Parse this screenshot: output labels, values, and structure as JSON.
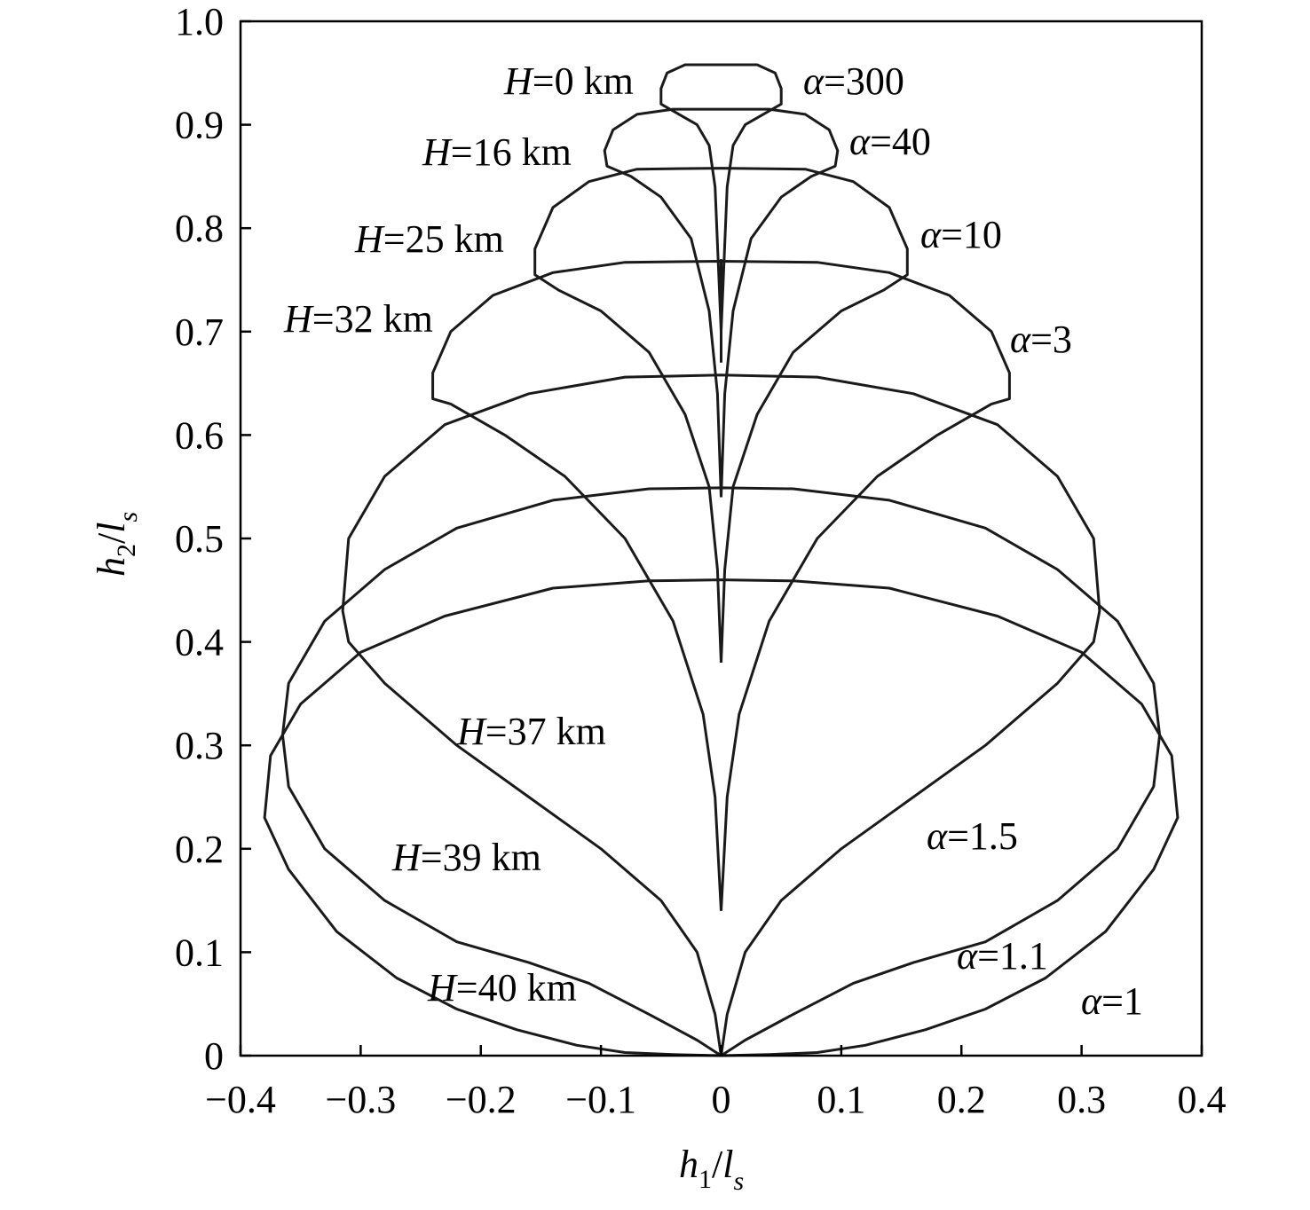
{
  "chart_data": {
    "type": "line",
    "xlabel": {
      "main": "h",
      "sub1": "1",
      "slash": "/",
      "main2": "l",
      "sub2": "s"
    },
    "ylabel": {
      "main": "h",
      "sub1": "2",
      "slash": "/",
      "main2": "l",
      "sub2": "s"
    },
    "xlim": [
      -0.4,
      0.4
    ],
    "ylim": [
      0,
      1.0
    ],
    "x_ticks": [
      {
        "value": -0.4,
        "label": "−0.4"
      },
      {
        "value": -0.3,
        "label": "−0.3"
      },
      {
        "value": -0.2,
        "label": "−0.2"
      },
      {
        "value": -0.1,
        "label": "−0.1"
      },
      {
        "value": 0,
        "label": "0"
      },
      {
        "value": 0.1,
        "label": "0.1"
      },
      {
        "value": 0.2,
        "label": "0.2"
      },
      {
        "value": 0.3,
        "label": "0.3"
      },
      {
        "value": 0.4,
        "label": "0.4"
      }
    ],
    "y_ticks": [
      {
        "value": 0,
        "label": "0"
      },
      {
        "value": 0.1,
        "label": "0.1"
      },
      {
        "value": 0.2,
        "label": "0.2"
      },
      {
        "value": 0.3,
        "label": "0.3"
      },
      {
        "value": 0.4,
        "label": "0.4"
      },
      {
        "value": 0.5,
        "label": "0.5"
      },
      {
        "value": 0.6,
        "label": "0.6"
      },
      {
        "value": 0.7,
        "label": "0.7"
      },
      {
        "value": 0.8,
        "label": "0.8"
      },
      {
        "value": 0.9,
        "label": "0.9"
      },
      {
        "value": 1.0,
        "label": "1.0"
      }
    ],
    "alpha_curves": [
      {
        "alpha": "300",
        "points": [
          [
            0,
            0.7
          ],
          [
            0.005,
            0.84
          ],
          [
            0.01,
            0.88
          ],
          [
            0.02,
            0.9
          ],
          [
            0.035,
            0.91
          ],
          [
            0.05,
            0.92
          ],
          [
            0.05,
            0.935
          ],
          [
            0.045,
            0.95
          ],
          [
            0.03,
            0.958
          ],
          [
            0,
            0.958
          ]
        ]
      },
      {
        "alpha": "40",
        "points": [
          [
            0,
            0.54
          ],
          [
            0.003,
            0.64
          ],
          [
            0.01,
            0.72
          ],
          [
            0.025,
            0.79
          ],
          [
            0.05,
            0.83
          ],
          [
            0.075,
            0.85
          ],
          [
            0.095,
            0.86
          ],
          [
            0.097,
            0.875
          ],
          [
            0.09,
            0.895
          ],
          [
            0.07,
            0.91
          ],
          [
            0.04,
            0.915
          ],
          [
            0,
            0.915
          ]
        ]
      },
      {
        "alpha": "10",
        "points": [
          [
            0,
            0.38
          ],
          [
            0.003,
            0.47
          ],
          [
            0.01,
            0.55
          ],
          [
            0.03,
            0.62
          ],
          [
            0.06,
            0.68
          ],
          [
            0.1,
            0.72
          ],
          [
            0.135,
            0.74
          ],
          [
            0.155,
            0.755
          ],
          [
            0.155,
            0.78
          ],
          [
            0.14,
            0.82
          ],
          [
            0.11,
            0.845
          ],
          [
            0.07,
            0.857
          ],
          [
            0,
            0.858
          ]
        ]
      },
      {
        "alpha": "3",
        "points": [
          [
            0,
            0.14
          ],
          [
            0.005,
            0.25
          ],
          [
            0.015,
            0.33
          ],
          [
            0.04,
            0.42
          ],
          [
            0.08,
            0.5
          ],
          [
            0.13,
            0.56
          ],
          [
            0.18,
            0.6
          ],
          [
            0.225,
            0.63
          ],
          [
            0.24,
            0.635
          ],
          [
            0.24,
            0.66
          ],
          [
            0.225,
            0.7
          ],
          [
            0.19,
            0.735
          ],
          [
            0.14,
            0.757
          ],
          [
            0.08,
            0.767
          ],
          [
            0,
            0.768
          ]
        ]
      },
      {
        "alpha": "1.5",
        "points": [
          [
            0,
            0
          ],
          [
            0.005,
            0.04
          ],
          [
            0.02,
            0.1
          ],
          [
            0.05,
            0.15
          ],
          [
            0.1,
            0.2
          ],
          [
            0.16,
            0.25
          ],
          [
            0.22,
            0.3
          ],
          [
            0.28,
            0.36
          ],
          [
            0.31,
            0.4
          ],
          [
            0.315,
            0.43
          ],
          [
            0.31,
            0.5
          ],
          [
            0.28,
            0.56
          ],
          [
            0.23,
            0.61
          ],
          [
            0.16,
            0.64
          ],
          [
            0.08,
            0.656
          ],
          [
            0,
            0.658
          ]
        ]
      },
      {
        "alpha": "1.1",
        "points": [
          [
            0,
            0
          ],
          [
            0.02,
            0.015
          ],
          [
            0.06,
            0.04
          ],
          [
            0.11,
            0.07
          ],
          [
            0.16,
            0.09
          ],
          [
            0.22,
            0.11
          ],
          [
            0.28,
            0.15
          ],
          [
            0.33,
            0.2
          ],
          [
            0.36,
            0.26
          ],
          [
            0.365,
            0.31
          ],
          [
            0.36,
            0.36
          ],
          [
            0.33,
            0.42
          ],
          [
            0.28,
            0.47
          ],
          [
            0.22,
            0.51
          ],
          [
            0.14,
            0.537
          ],
          [
            0.06,
            0.548
          ],
          [
            0,
            0.549
          ]
        ]
      },
      {
        "alpha": "1",
        "points": [
          [
            0,
            0
          ],
          [
            0.04,
            0.001
          ],
          [
            0.08,
            0.003
          ],
          [
            0.12,
            0.01
          ],
          [
            0.17,
            0.025
          ],
          [
            0.22,
            0.045
          ],
          [
            0.27,
            0.075
          ],
          [
            0.32,
            0.12
          ],
          [
            0.36,
            0.18
          ],
          [
            0.38,
            0.23
          ],
          [
            0.375,
            0.29
          ],
          [
            0.35,
            0.34
          ],
          [
            0.3,
            0.39
          ],
          [
            0.23,
            0.425
          ],
          [
            0.14,
            0.452
          ],
          [
            0.06,
            0.459
          ],
          [
            0,
            0.46
          ]
        ]
      }
    ],
    "h_labels": [
      "H=0 km",
      "H=16 km",
      "H=25 km",
      "H=32 km",
      "H=37 km",
      "H=39 km",
      "H=40 km"
    ],
    "alpha_labels": [
      "α=300",
      "α=40",
      "α=10",
      "α=3",
      "α=1.5",
      "α=1.1",
      "α=1"
    ],
    "spike": {
      "x": 0,
      "y_top": 0.77,
      "y_bottom": 0.67
    },
    "grid": false,
    "legend": "none"
  }
}
